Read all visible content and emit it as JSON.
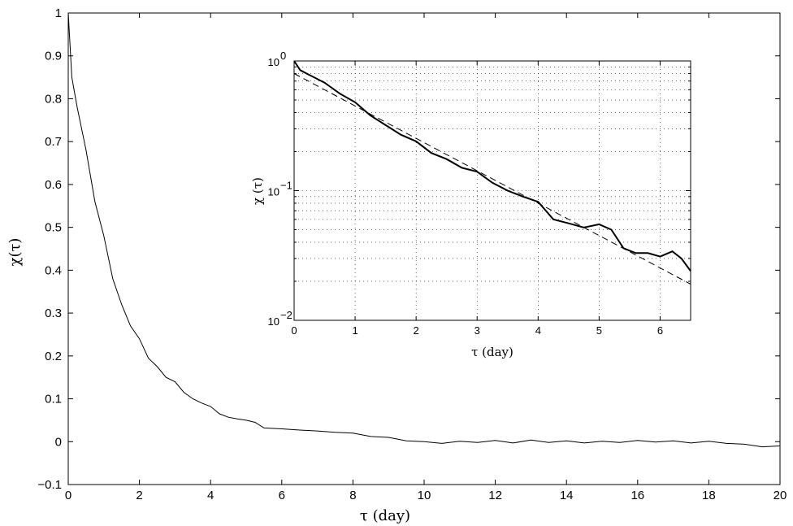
{
  "chart_data": [
    {
      "id": "main",
      "type": "line",
      "xlabel": "τ (day)",
      "ylabel": "χ(τ)",
      "xlim": [
        0,
        20
      ],
      "ylim": [
        -0.1,
        1
      ],
      "xticks": [
        0,
        2,
        4,
        6,
        8,
        10,
        12,
        14,
        16,
        18,
        20
      ],
      "xtick_labels": [
        "0",
        "2",
        "4",
        "6",
        "8",
        "10",
        "12",
        "14",
        "16",
        "18",
        "20"
      ],
      "yticks": [
        -0.1,
        0,
        0.1,
        0.2,
        0.3,
        0.4,
        0.5,
        0.6,
        0.7,
        0.8,
        0.9,
        1
      ],
      "ytick_labels": [
        "−0.1",
        "0",
        "0.1",
        "0.2",
        "0.3",
        "0.4",
        "0.5",
        "0.6",
        "0.7",
        "0.8",
        "0.9",
        "1"
      ],
      "grid": false,
      "series": [
        {
          "color": "#000000",
          "style": "solid",
          "x": [
            0,
            0.1,
            0.25,
            0.5,
            0.75,
            1,
            1.25,
            1.5,
            1.75,
            2,
            2.25,
            2.5,
            2.75,
            3,
            3.25,
            3.5,
            3.75,
            4,
            4.25,
            4.5,
            4.75,
            5,
            5.25,
            5.5,
            6,
            6.5,
            7,
            7.5,
            8,
            8.5,
            9,
            9.5,
            10,
            10.5,
            11,
            11.5,
            12,
            12.5,
            13,
            13.5,
            14,
            14.5,
            15,
            15.5,
            16,
            16.5,
            17,
            17.5,
            18,
            18.5,
            19,
            19.5,
            20
          ],
          "y": [
            1.0,
            0.85,
            0.78,
            0.68,
            0.56,
            0.48,
            0.38,
            0.32,
            0.27,
            0.24,
            0.195,
            0.175,
            0.15,
            0.14,
            0.115,
            0.1,
            0.09,
            0.082,
            0.065,
            0.057,
            0.053,
            0.05,
            0.045,
            0.032,
            0.03,
            0.027,
            0.025,
            0.022,
            0.02,
            0.012,
            0.01,
            0.002,
            0.0,
            -0.004,
            0.001,
            -0.002,
            0.003,
            -0.003,
            0.004,
            -0.002,
            0.002,
            -0.003,
            0.001,
            -0.002,
            0.003,
            -0.001,
            0.002,
            -0.003,
            0.001,
            -0.004,
            -0.006,
            -0.012,
            -0.01
          ]
        }
      ]
    },
    {
      "id": "inset",
      "type": "line",
      "yscale": "log",
      "xlabel": "τ (day)",
      "ylabel": "χ (τ)",
      "xlim": [
        0,
        6.5
      ],
      "ylim": [
        0.01,
        1
      ],
      "xticks": [
        0,
        1,
        2,
        3,
        4,
        5,
        6
      ],
      "xtick_labels": [
        "0",
        "1",
        "2",
        "3",
        "4",
        "5",
        "6"
      ],
      "yticks": [
        0.01,
        0.1,
        1
      ],
      "ytick_labels": [
        {
          "base": "10",
          "exp": "−2"
        },
        {
          "base": "10",
          "exp": "−1"
        },
        {
          "base": "10",
          "exp": "0"
        }
      ],
      "grid": true,
      "series": [
        {
          "color": "#000000",
          "style": "solid",
          "x": [
            0,
            0.1,
            0.25,
            0.5,
            0.75,
            1,
            1.25,
            1.5,
            1.75,
            2,
            2.25,
            2.5,
            2.75,
            3,
            3.25,
            3.5,
            3.75,
            4,
            4.25,
            4.5,
            4.75,
            5,
            5.2,
            5.4,
            5.6,
            5.8,
            6.0,
            6.2,
            6.35,
            6.5
          ],
          "y": [
            1.0,
            0.85,
            0.78,
            0.68,
            0.56,
            0.48,
            0.38,
            0.32,
            0.27,
            0.24,
            0.195,
            0.175,
            0.15,
            0.14,
            0.115,
            0.1,
            0.09,
            0.082,
            0.06,
            0.056,
            0.052,
            0.055,
            0.05,
            0.036,
            0.033,
            0.033,
            0.031,
            0.034,
            0.03,
            0.024
          ]
        },
        {
          "color": "#000000",
          "style": "dashed",
          "x": [
            0,
            6.5
          ],
          "y": [
            0.8,
            0.019
          ]
        }
      ]
    }
  ]
}
